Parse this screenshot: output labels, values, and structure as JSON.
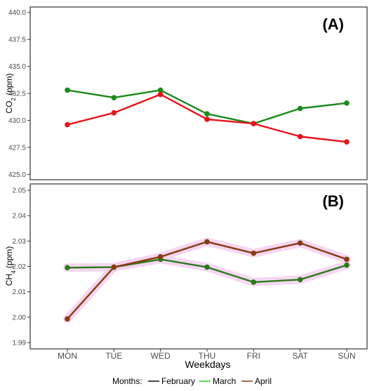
{
  "chart_data": [
    {
      "type": "line",
      "panel_label": "(A)",
      "ylabel_main": "CO",
      "ylabel_sub": "2",
      "ylabel_unit": " (ppm)",
      "ylim": [
        424.5,
        440.5
      ],
      "yticks": [
        "425.0",
        "427.5",
        "430.0",
        "432.5",
        "435.0",
        "437.5",
        "440.0"
      ],
      "ytick_values": [
        425.0,
        427.5,
        430.0,
        432.5,
        435.0,
        437.5,
        440.0
      ],
      "categories": [
        "MON",
        "TUE",
        "WED",
        "THU",
        "FRI",
        "SAT",
        "SUN"
      ],
      "grid": false,
      "series": [
        {
          "name": "March",
          "color": "#1a8a1a",
          "values": [
            432.8,
            432.1,
            432.8,
            430.6,
            429.7,
            431.1,
            431.6
          ]
        },
        {
          "name": "April",
          "color": "#e8121a",
          "values": [
            429.6,
            430.7,
            432.4,
            430.1,
            429.7,
            428.5,
            428.0
          ]
        }
      ]
    },
    {
      "type": "line",
      "panel_label": "(B)",
      "ylabel_main": "CH",
      "ylabel_sub": "4",
      "ylabel_unit": " (ppm)",
      "ylim": [
        1.9875,
        2.0525
      ],
      "yticks": [
        "1.99",
        "2.00",
        "2.01",
        "2.02",
        "2.03",
        "2.04",
        "2.05"
      ],
      "ytick_values": [
        1.99,
        2.0,
        2.01,
        2.02,
        2.03,
        2.04,
        2.05
      ],
      "categories": [
        "MON",
        "TUE",
        "WED",
        "THU",
        "FRI",
        "SAT",
        "SUN"
      ],
      "grid": false,
      "series": [
        {
          "name": "March",
          "color": "#2a7a1a",
          "values": [
            2.0195,
            2.0197,
            2.0228,
            2.0197,
            2.0138,
            2.0148,
            2.0205
          ]
        },
        {
          "name": "April",
          "color": "#8a3a12",
          "values": [
            1.9993,
            2.0197,
            2.0238,
            2.0297,
            2.0252,
            2.0292,
            2.0228
          ]
        }
      ]
    }
  ],
  "xlabel": "Weekdays",
  "legend": {
    "title": "Months:",
    "placement": "bottom",
    "items": [
      {
        "name": "February",
        "color": "#111111"
      },
      {
        "name": "March",
        "color": "#22cc22"
      },
      {
        "name": "April",
        "color": "#8a3a12"
      }
    ]
  },
  "colors": {
    "axis": "#333333",
    "tick_text": "#4d4d4d",
    "halo": "#f5d0f0"
  }
}
